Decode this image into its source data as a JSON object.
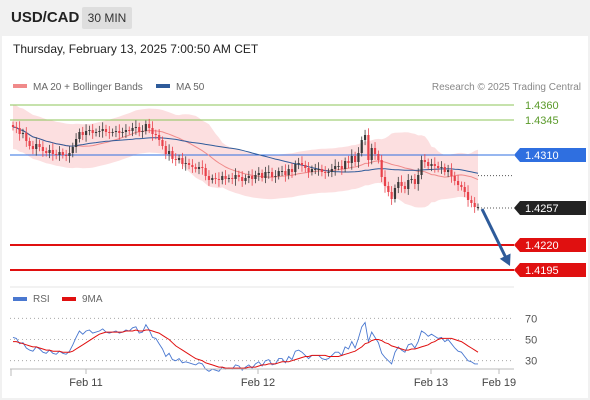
{
  "header": {
    "symbol": "USD/CAD",
    "timeframe": "30 MIN"
  },
  "datetime": "Thursday, February 13, 2025 7:00:50 AM CET",
  "credit": "Research © 2025 Trading Central",
  "colors": {
    "up_candle": "#3a3a3a",
    "down_candle": "#e8414a",
    "ma20": "#f08a8a",
    "ma50": "#2e5b9a",
    "band_fill": "#fbd9da",
    "resistance": "#8cc65a",
    "pivot": "#2f6fe0",
    "support": "#e01010",
    "price_tag": "#222222",
    "rsi": "#4a78d0",
    "rsi_ma": "#e01010",
    "arrow": "#2e5b9a"
  },
  "chart_data": [
    {
      "type": "candlestick",
      "title": "",
      "legend": [
        {
          "name": "MA 20 + Bollinger Bands",
          "color": "#f08a8a"
        },
        {
          "name": "MA 50",
          "color": "#2e5b9a"
        }
      ],
      "legend_position": "top-left",
      "grid": false,
      "ylim": [
        1.4185,
        1.4372
      ],
      "x_ticks": [
        "Feb 11",
        "Feb 12",
        "Feb 13",
        "Feb 19"
      ],
      "levels": [
        {
          "label": "1.4360",
          "value": 1.436,
          "kind": "resistance"
        },
        {
          "label": "1.4345",
          "value": 1.4345,
          "kind": "resistance"
        },
        {
          "label": "1.4310",
          "value": 1.431,
          "kind": "pivot"
        },
        {
          "label": "1.4257",
          "value": 1.4257,
          "kind": "last_price"
        },
        {
          "label": "1.4220",
          "value": 1.422,
          "kind": "support"
        },
        {
          "label": "1.4195",
          "value": 1.4195,
          "kind": "support"
        }
      ],
      "forecast_arrow": {
        "from": 1.4256,
        "to": 1.4199
      },
      "close": [
        1.4338,
        1.4337,
        1.4331,
        1.4332,
        1.4324,
        1.4319,
        1.4316,
        1.4321,
        1.4318,
        1.4314,
        1.4312,
        1.4315,
        1.4311,
        1.431,
        1.4313,
        1.431,
        1.4309,
        1.4312,
        1.4318,
        1.4326,
        1.4333,
        1.433,
        1.4334,
        1.4335,
        1.4332,
        1.4333,
        1.4334,
        1.4336,
        1.4333,
        1.4332,
        1.4333,
        1.4334,
        1.4332,
        1.4333,
        1.4335,
        1.4334,
        1.4337,
        1.4338,
        1.4333,
        1.4334,
        1.4341,
        1.4337,
        1.4331,
        1.433,
        1.4325,
        1.4319,
        1.4311,
        1.4314,
        1.4306,
        1.4305,
        1.4307,
        1.4301,
        1.4302,
        1.43,
        1.4298,
        1.4296,
        1.4298,
        1.4297,
        1.4289,
        1.4285,
        1.4287,
        1.4286,
        1.4285,
        1.4289,
        1.4286,
        1.4287,
        1.4286,
        1.429,
        1.4288,
        1.4284,
        1.4287,
        1.4289,
        1.4286,
        1.429,
        1.4292,
        1.4287,
        1.4293,
        1.4293,
        1.4288,
        1.4289,
        1.4294,
        1.4294,
        1.429,
        1.4296,
        1.4293,
        1.4301,
        1.4302,
        1.43,
        1.4297,
        1.4293,
        1.4296,
        1.4296,
        1.4296,
        1.4293,
        1.4292,
        1.4293,
        1.4296,
        1.4299,
        1.4299,
        1.4296,
        1.4304,
        1.4302,
        1.4309,
        1.4303,
        1.4312,
        1.4325,
        1.433,
        1.4305,
        1.4317,
        1.4311,
        1.4305,
        1.4288,
        1.4279,
        1.4273,
        1.4266,
        1.4277,
        1.4283,
        1.4279,
        1.4276,
        1.4285,
        1.4286,
        1.4281,
        1.429,
        1.4305,
        1.4303,
        1.4299,
        1.4301,
        1.4299,
        1.4297,
        1.4298,
        1.4293,
        1.4295,
        1.4289,
        1.4284,
        1.428,
        1.4278,
        1.4273,
        1.4265,
        1.4262,
        1.4258,
        1.4258
      ],
      "rsi": {
        "legend": [
          {
            "name": "RSI",
            "color": "#4a78d0"
          },
          {
            "name": "9MA",
            "color": "#e01010"
          }
        ],
        "ylim": [
          25,
          75
        ],
        "ticks": [
          {
            "label": "70",
            "value": 70
          },
          {
            "label": "50",
            "value": 50
          },
          {
            "label": "30",
            "value": 30
          }
        ],
        "rsi": [
          52,
          51,
          46,
          47,
          42,
          40,
          39,
          43,
          41,
          38,
          37,
          40,
          37,
          36,
          39,
          37,
          36,
          39,
          45,
          52,
          58,
          55,
          58,
          59,
          56,
          57,
          58,
          60,
          57,
          56,
          57,
          58,
          56,
          57,
          59,
          58,
          61,
          62,
          56,
          57,
          64,
          59,
          52,
          51,
          46,
          41,
          34,
          37,
          31,
          30,
          32,
          28,
          29,
          28,
          27,
          26,
          28,
          27,
          22,
          20,
          22,
          21,
          20,
          24,
          22,
          23,
          22,
          26,
          25,
          21,
          24,
          26,
          23,
          27,
          29,
          25,
          30,
          31,
          26,
          27,
          32,
          32,
          28,
          34,
          31,
          39,
          40,
          38,
          35,
          32,
          35,
          35,
          35,
          32,
          31,
          32,
          35,
          38,
          38,
          35,
          43,
          41,
          48,
          42,
          51,
          62,
          66,
          48,
          57,
          52,
          47,
          37,
          33,
          30,
          27,
          38,
          43,
          40,
          38,
          45,
          46,
          42,
          48,
          58,
          56,
          53,
          55,
          53,
          51,
          52,
          48,
          50,
          46,
          42,
          39,
          38,
          34,
          30,
          29,
          27,
          27
        ],
        "ma": [
          48,
          48,
          47,
          46,
          45,
          44,
          43,
          43,
          42,
          41,
          40,
          40,
          39,
          39,
          39,
          38,
          38,
          38,
          39,
          41,
          43,
          45,
          47,
          49,
          51,
          53,
          55,
          56,
          57,
          57,
          57,
          57,
          57,
          57,
          58,
          58,
          58,
          59,
          58,
          58,
          59,
          59,
          58,
          57,
          56,
          54,
          52,
          50,
          47,
          44,
          42,
          40,
          38,
          36,
          34,
          32,
          31,
          30,
          28,
          27,
          26,
          25,
          24,
          24,
          23,
          23,
          23,
          23,
          23,
          23,
          23,
          24,
          24,
          24,
          25,
          26,
          26,
          27,
          27,
          27,
          28,
          29,
          29,
          29,
          30,
          31,
          32,
          33,
          34,
          34,
          35,
          35,
          35,
          35,
          35,
          34,
          34,
          34,
          34,
          35,
          36,
          37,
          38,
          39,
          41,
          43,
          46,
          47,
          49,
          50,
          50,
          49,
          47,
          46,
          44,
          43,
          42,
          41,
          40,
          40,
          41,
          41,
          42,
          43,
          44,
          45,
          47,
          48,
          50,
          51,
          51,
          51,
          51,
          50,
          49,
          48,
          46,
          44,
          42,
          40,
          38
        ]
      }
    }
  ]
}
